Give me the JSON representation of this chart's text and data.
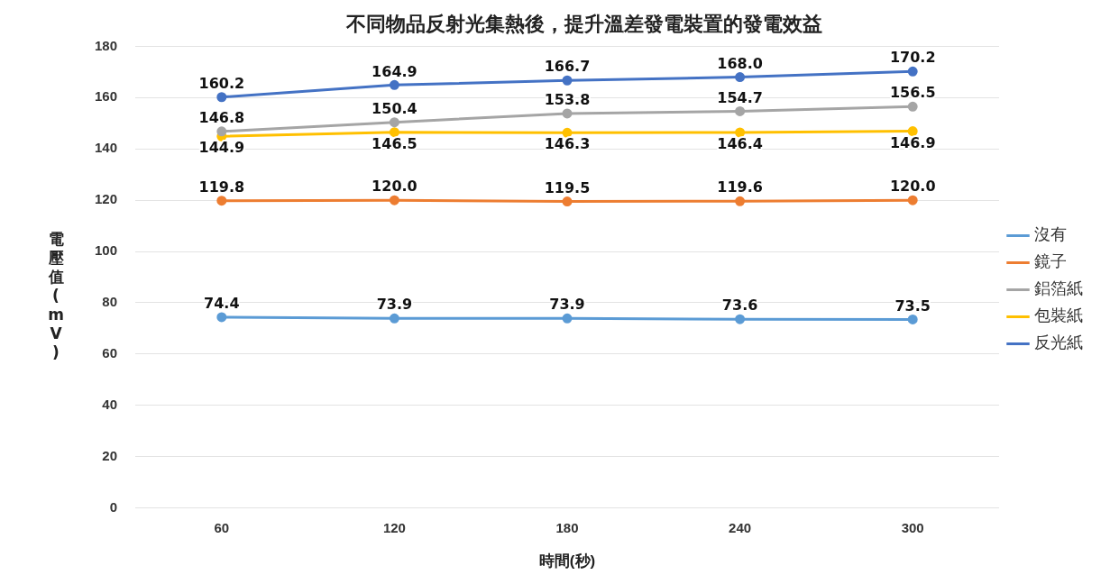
{
  "chart_data": {
    "type": "line",
    "title": "不同物品反射光集熱後，提升溫差發電裝置的發電效益",
    "xlabel": "時間(秒)",
    "ylabel": "電壓值(mV)",
    "categories": [
      "60",
      "120",
      "180",
      "240",
      "300"
    ],
    "series": [
      {
        "name": "沒有",
        "color": "#5b9bd5",
        "values": [
          74.4,
          73.9,
          73.9,
          73.6,
          73.5
        ],
        "value_labels": [
          "74.4",
          "73.9",
          "73.9",
          "73.6",
          "73.5"
        ]
      },
      {
        "name": "鏡子",
        "color": "#ed7d31",
        "values": [
          119.8,
          120.0,
          119.5,
          119.6,
          120.0
        ],
        "value_labels": [
          "119.8",
          "120.0",
          "119.5",
          "119.6",
          "120.0"
        ]
      },
      {
        "name": "鋁箔紙",
        "color": "#a5a5a5",
        "values": [
          146.8,
          150.4,
          153.8,
          154.7,
          156.5
        ],
        "value_labels": [
          "146.8",
          "150.4",
          "153.8",
          "154.7",
          "156.5"
        ]
      },
      {
        "name": "包裝紙",
        "color": "#ffc000",
        "values": [
          144.9,
          146.5,
          146.3,
          146.4,
          146.9
        ],
        "value_labels": [
          "144.9",
          "146.5",
          "146.3",
          "146.4",
          "146.9"
        ]
      },
      {
        "name": "反光紙",
        "color": "#4472c4",
        "values": [
          160.2,
          164.9,
          166.7,
          168.0,
          170.2
        ],
        "value_labels": [
          "160.2",
          "164.9",
          "166.7",
          "168.0",
          "170.2"
        ]
      }
    ],
    "ylim": [
      0,
      180
    ],
    "yticks": [
      0,
      20,
      40,
      60,
      80,
      100,
      120,
      140,
      160,
      180
    ],
    "grid": "y",
    "legend": "right",
    "marker": "circle",
    "line_style": "solid"
  }
}
